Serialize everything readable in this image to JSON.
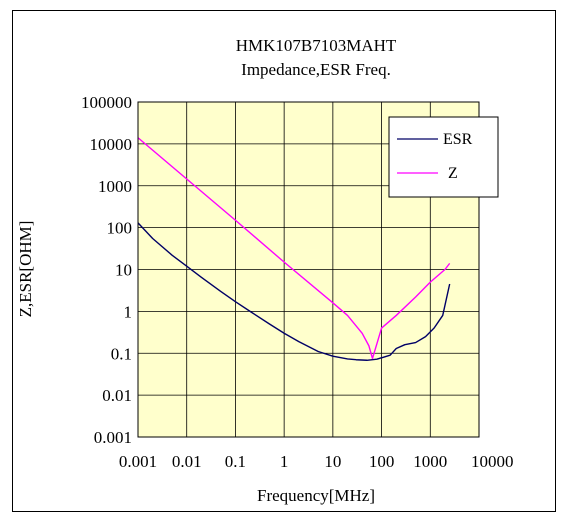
{
  "chart_data": {
    "type": "line",
    "title": "HMK107B7103MAHT",
    "subtitle": "Impedance,ESR Freq.",
    "xlabel": "Frequency[MHz]",
    "ylabel": "Z,ESR[OHM]",
    "x_scale": "log",
    "y_scale": "log",
    "xlim": [
      0.001,
      10000
    ],
    "ylim": [
      0.001,
      100000
    ],
    "x_ticks": [
      0.001,
      0.01,
      0.1,
      1,
      10,
      100,
      1000,
      10000
    ],
    "x_tick_labels": [
      "0.001",
      "0.01",
      "0.1",
      "1",
      "10",
      "100",
      "1000",
      "10000"
    ],
    "y_ticks": [
      0.001,
      0.01,
      0.1,
      1,
      10,
      100,
      1000,
      10000,
      100000
    ],
    "y_tick_labels": [
      "0.001",
      "0.01",
      "0.1",
      "1",
      "10",
      "100",
      "1000",
      "10000",
      "100000"
    ],
    "grid": true,
    "legend_position": "top-right",
    "plot_background": "#ffffcc",
    "series": [
      {
        "name": "ESR",
        "color": "#000066",
        "points": [
          [
            0.001,
            130
          ],
          [
            0.002,
            55
          ],
          [
            0.005,
            22
          ],
          [
            0.01,
            12
          ],
          [
            0.02,
            6.5
          ],
          [
            0.05,
            3
          ],
          [
            0.1,
            1.7
          ],
          [
            0.2,
            1
          ],
          [
            0.5,
            0.5
          ],
          [
            1,
            0.3
          ],
          [
            2,
            0.19
          ],
          [
            5,
            0.11
          ],
          [
            10,
            0.085
          ],
          [
            20,
            0.073
          ],
          [
            30,
            0.07
          ],
          [
            50,
            0.068
          ],
          [
            80,
            0.072
          ],
          [
            150,
            0.09
          ],
          [
            200,
            0.13
          ],
          [
            300,
            0.16
          ],
          [
            500,
            0.18
          ],
          [
            800,
            0.25
          ],
          [
            1200,
            0.4
          ],
          [
            1800,
            0.8
          ],
          [
            2500,
            4.5
          ]
        ]
      },
      {
        "name": "Z",
        "color": "#ff00ff",
        "points": [
          [
            0.001,
            14000
          ],
          [
            0.01,
            1450
          ],
          [
            0.1,
            150
          ],
          [
            1,
            15
          ],
          [
            10,
            1.6
          ],
          [
            20,
            0.8
          ],
          [
            40,
            0.3
          ],
          [
            55,
            0.15
          ],
          [
            65,
            0.075
          ],
          [
            75,
            0.13
          ],
          [
            100,
            0.4
          ],
          [
            200,
            0.8
          ],
          [
            500,
            2.2
          ],
          [
            1000,
            5
          ],
          [
            2000,
            10
          ],
          [
            2500,
            14
          ]
        ]
      }
    ]
  }
}
